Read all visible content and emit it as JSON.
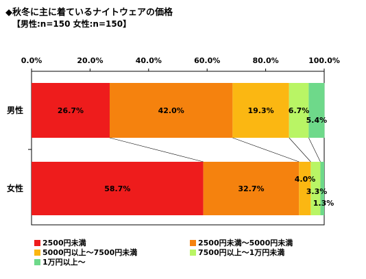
{
  "title": "◆秋冬に主に着ているナイトウェアの価格",
  "subtitle": "【男性:n=150 女性:n=150】",
  "chart_data": {
    "type": "bar",
    "orientation": "horizontal",
    "stacked": true,
    "categories": [
      "男性",
      "女性"
    ],
    "xlim": [
      0,
      100
    ],
    "ticks": [
      "0.0%",
      "20.0%",
      "40.0%",
      "60.0%",
      "80.0%",
      "100.0%"
    ],
    "series": [
      {
        "name": "2500円未満",
        "color": "#ee1c1c",
        "values": [
          26.7,
          58.7
        ],
        "labels": [
          "26.7%",
          "58.7%"
        ]
      },
      {
        "name": "2500円未満～5000円未満",
        "color": "#f5820e",
        "values": [
          42.0,
          32.7
        ],
        "labels": [
          "42.0%",
          "32.7%"
        ]
      },
      {
        "name": "5000円以上～7500円未満",
        "color": "#fbb712",
        "values": [
          19.3,
          4.0
        ],
        "labels": [
          "19.3%",
          "4.0%"
        ]
      },
      {
        "name": "7500円以上～1万円未満",
        "color": "#b9f565",
        "values": [
          6.7,
          3.3
        ],
        "labels": [
          "6.7%",
          "3.3%"
        ]
      },
      {
        "name": "1万円以上～",
        "color": "#6ed98a",
        "values": [
          5.4,
          1.3
        ],
        "labels": [
          "5.4%",
          "1.3%"
        ]
      }
    ],
    "legend_position": "bottom"
  }
}
